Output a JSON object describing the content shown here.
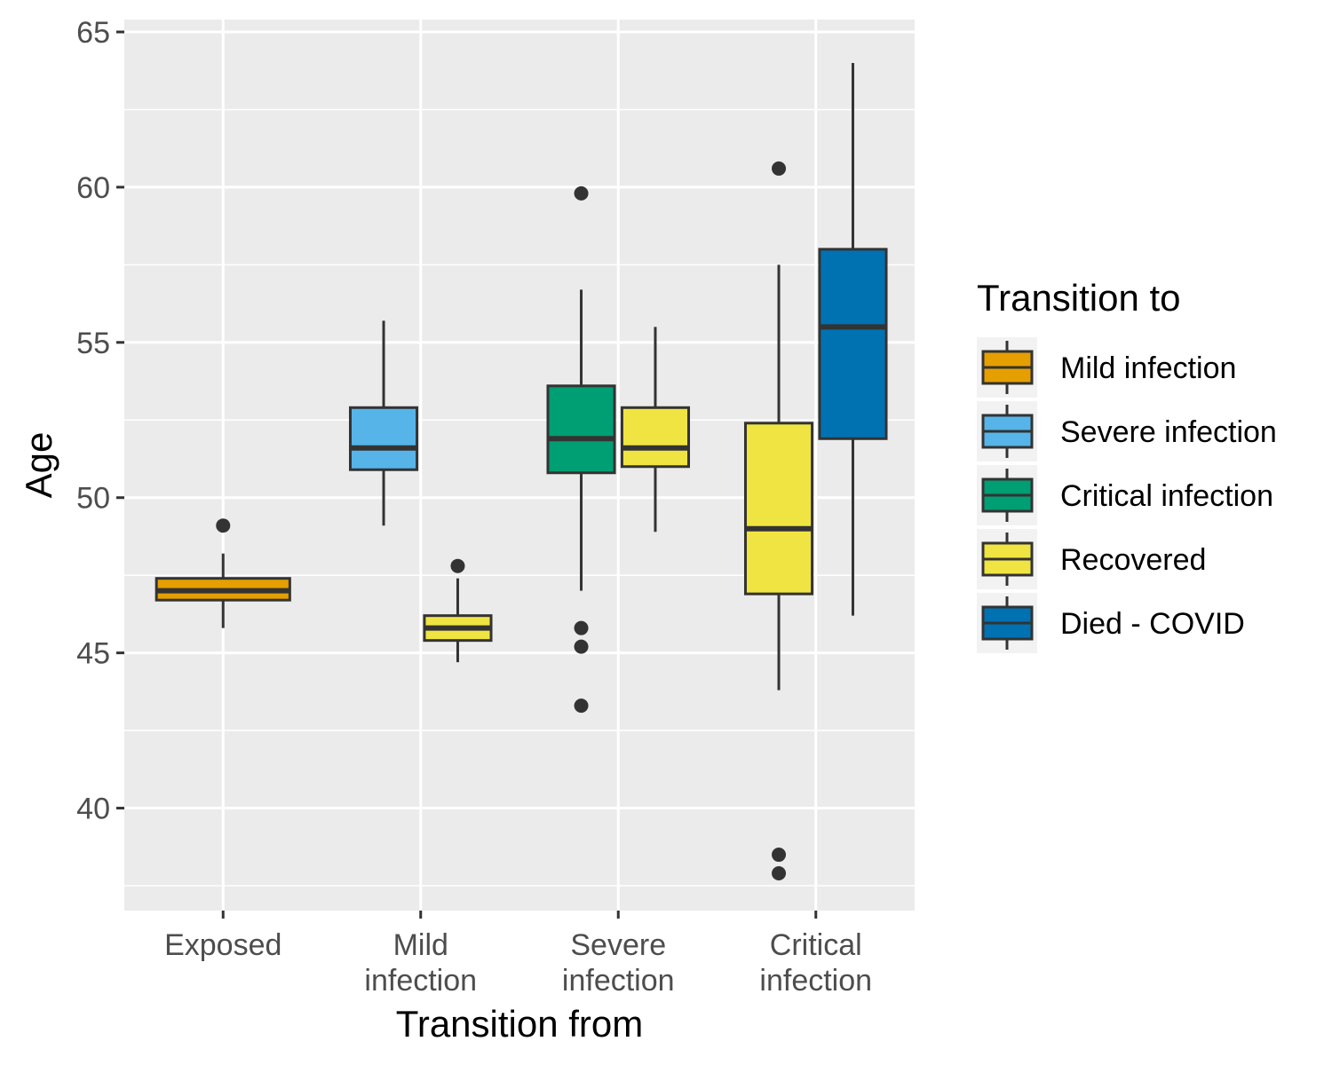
{
  "chart_data": {
    "type": "box",
    "xlabel": "Transition from",
    "ylabel": "Age",
    "ylim": [
      36.7,
      65.4
    ],
    "yticks": [
      40,
      45,
      50,
      55,
      60,
      65
    ],
    "grid": true,
    "legend_placement": "right",
    "legend_title": "Transition to",
    "categories": [
      {
        "lines": [
          "Exposed"
        ]
      },
      {
        "lines": [
          "Mild",
          "infection"
        ]
      },
      {
        "lines": [
          "Severe",
          "infection"
        ]
      },
      {
        "lines": [
          "Critical",
          "infection"
        ]
      }
    ],
    "series": [
      {
        "name": "Mild infection",
        "color": "#E69F00"
      },
      {
        "name": "Severe infection",
        "color": "#56B4E9"
      },
      {
        "name": "Critical infection",
        "color": "#009E73"
      },
      {
        "name": "Recovered",
        "color": "#F0E442"
      },
      {
        "name": "Died - COVID",
        "color": "#0072B2"
      }
    ],
    "boxes": [
      {
        "category": 0,
        "series": 0,
        "slot": 0,
        "slots": 1,
        "whisker_low": 45.8,
        "q1": 46.7,
        "median": 47.0,
        "q3": 47.4,
        "whisker_high": 48.2,
        "outliers": [
          49.1
        ]
      },
      {
        "category": 1,
        "series": 1,
        "slot": 0,
        "slots": 2,
        "whisker_low": 49.1,
        "q1": 50.9,
        "median": 51.6,
        "q3": 52.9,
        "whisker_high": 55.7,
        "outliers": []
      },
      {
        "category": 1,
        "series": 3,
        "slot": 1,
        "slots": 2,
        "whisker_low": 44.7,
        "q1": 45.4,
        "median": 45.8,
        "q3": 46.2,
        "whisker_high": 47.4,
        "outliers": [
          47.8
        ]
      },
      {
        "category": 2,
        "series": 2,
        "slot": 0,
        "slots": 2,
        "whisker_low": 47.0,
        "q1": 50.8,
        "median": 51.9,
        "q3": 53.6,
        "whisker_high": 56.7,
        "outliers": [
          59.8,
          45.8,
          45.2,
          43.3
        ]
      },
      {
        "category": 2,
        "series": 3,
        "slot": 1,
        "slots": 2,
        "whisker_low": 48.9,
        "q1": 51.0,
        "median": 51.6,
        "q3": 52.9,
        "whisker_high": 55.5,
        "outliers": []
      },
      {
        "category": 3,
        "series": 3,
        "slot": 0,
        "slots": 2,
        "whisker_low": 43.8,
        "q1": 46.9,
        "median": 49.0,
        "q3": 52.4,
        "whisker_high": 57.5,
        "outliers": [
          60.6,
          38.5,
          37.9
        ]
      },
      {
        "category": 3,
        "series": 4,
        "slot": 1,
        "slots": 2,
        "whisker_low": 46.2,
        "q1": 51.9,
        "median": 55.5,
        "q3": 58.0,
        "whisker_high": 64.0,
        "outliers": []
      }
    ]
  }
}
